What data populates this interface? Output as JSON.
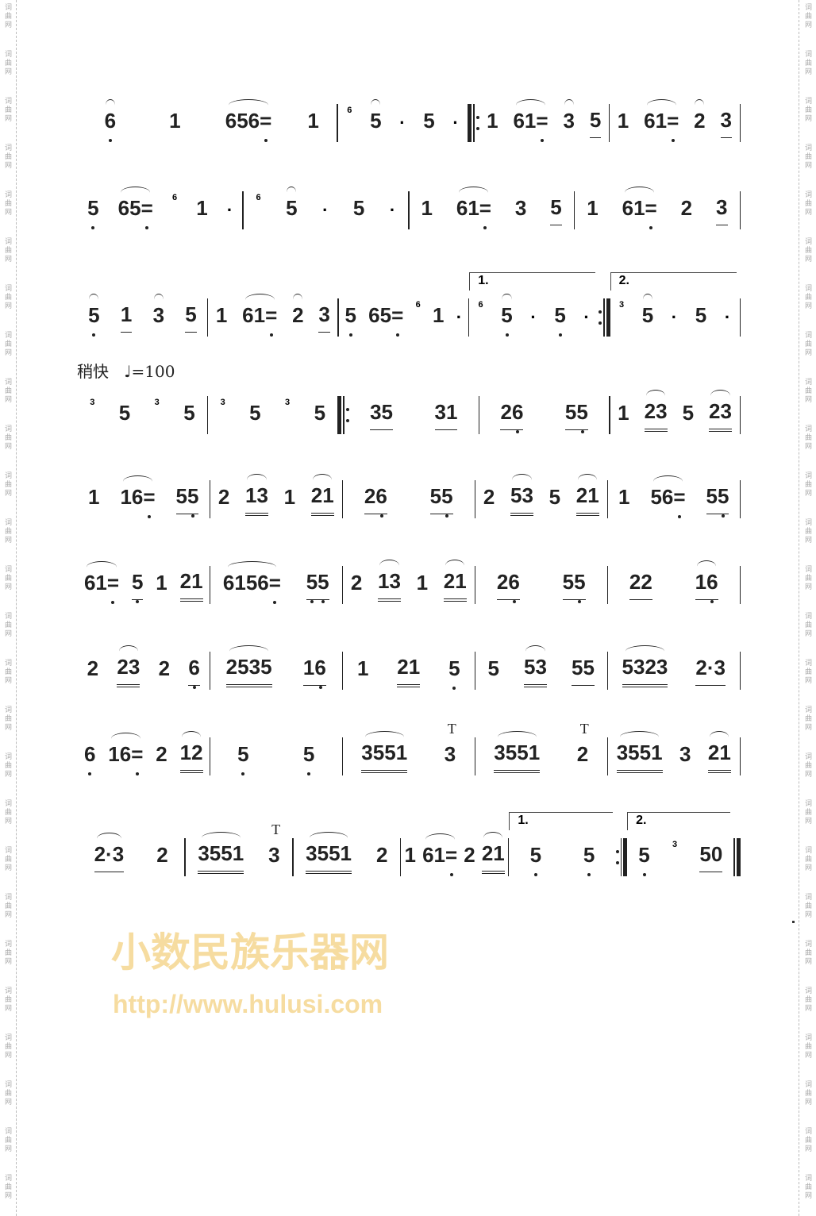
{
  "margin_text": "词曲网",
  "watermark": {
    "title": "小数民族乐器网",
    "url": "http://www.hulusi.com"
  },
  "tempo": {
    "label": "稍快",
    "mark": "♩=100"
  },
  "lines": [
    [
      "~6, 1",
      "~656=,, 1",
      "|",
      "^6 ~5 · 5 ·",
      "|:",
      "1 ~61=, ~3 5_",
      "|",
      "1 ~61=, ~2 3_",
      "|"
    ],
    [
      "5, ~65=,, ^6 1 ·",
      "|",
      "^6 ~5 · 5 ·",
      "|",
      "1 ~61=, 3 5_",
      "|",
      "1 ~61=, 2 3_",
      "|"
    ],
    [
      "~5, 1_ ~3 5_",
      "|",
      "1 ~61=, ~2 3_",
      "|",
      "5, 65=,, ^6 1 ·",
      "|",
      {
        "volta": "1.",
        "m": "^6 ~5, · 5, ·"
      },
      ":|",
      {
        "volta": "2.",
        "m": "^3 ~5 · 5 ·"
      },
      "|"
    ],
    [
      "^3 5 ^3 5",
      "|",
      "^3 5 ^3 5",
      "|:",
      "35_ 31_",
      "|",
      "26,_ 55,_",
      "|",
      "1 ~23= 5 ~23=",
      "|"
    ],
    [
      "1 ~16=, 55,_",
      "|",
      "2 ~13= 1 ~21=",
      "|",
      "26,_ 55,_",
      "|",
      "2 ~53= 5 ~21=",
      "|",
      "1 ~56=, 55,_",
      "|"
    ],
    [
      "~61=, 5,_ 1 21=",
      "|",
      "~6156=,,, 5,5,_",
      "|",
      "2 ~13= 1 ~21=",
      "|",
      "26,_ 55,_",
      "|",
      "22_ ~16,_",
      "|"
    ],
    [
      "2 ~23= 2 6,_",
      "|",
      "~2535= 16,_",
      "|",
      "1 21= 5,",
      "|",
      "5 ~53= 55_",
      "|",
      "~5323= 2·3_",
      "|"
    ],
    [
      "6, ~16=, 2 ~12=",
      "|",
      "5, 5,",
      "|",
      "~3551= T3",
      "|",
      "~3551= T2",
      "|",
      "~3551= 3 ~21=",
      "|"
    ],
    [
      "~2·3_ 2",
      "|",
      "~3551= T3",
      "|",
      "~3551= 2",
      "|",
      "1 ~61=, 2 ~21=",
      "|",
      {
        "volta": "1.",
        "m": "5, 5,"
      },
      ":|",
      {
        "volta": "2.",
        "m": "5, ^3 50_"
      },
      "||"
    ]
  ]
}
